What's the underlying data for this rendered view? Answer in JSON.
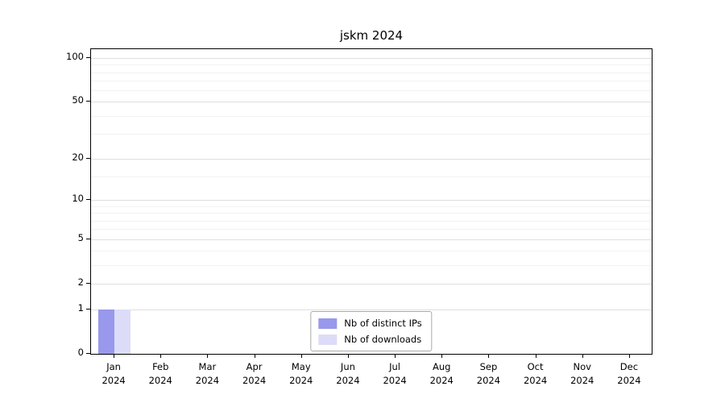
{
  "title": "jskm 2024",
  "chart_data": {
    "type": "bar",
    "title": "jskm 2024",
    "categories": [
      "Jan",
      "Feb",
      "Mar",
      "Apr",
      "May",
      "Jun",
      "Jul",
      "Aug",
      "Sep",
      "Oct",
      "Nov",
      "Dec"
    ],
    "year": "2024",
    "series": [
      {
        "name": "Nb of distinct IPs",
        "color": "#9898ec",
        "values": [
          1,
          0,
          0,
          0,
          0,
          0,
          0,
          0,
          0,
          0,
          0,
          0
        ]
      },
      {
        "name": "Nb of downloads",
        "color": "#dcdcf8",
        "values": [
          1,
          0,
          0,
          0,
          0,
          0,
          0,
          0,
          0,
          0,
          0,
          0
        ]
      }
    ],
    "yticks": [
      0,
      1,
      2,
      5,
      10,
      20,
      50,
      100
    ],
    "minor_gridlines": [
      3,
      4,
      6,
      7,
      8,
      9,
      15,
      30,
      40,
      60,
      70,
      80,
      90
    ],
    "scale": "log1p",
    "ymax": 115,
    "ylim": [
      0,
      115
    ],
    "grid": true,
    "legend_position": "bottom-center"
  }
}
